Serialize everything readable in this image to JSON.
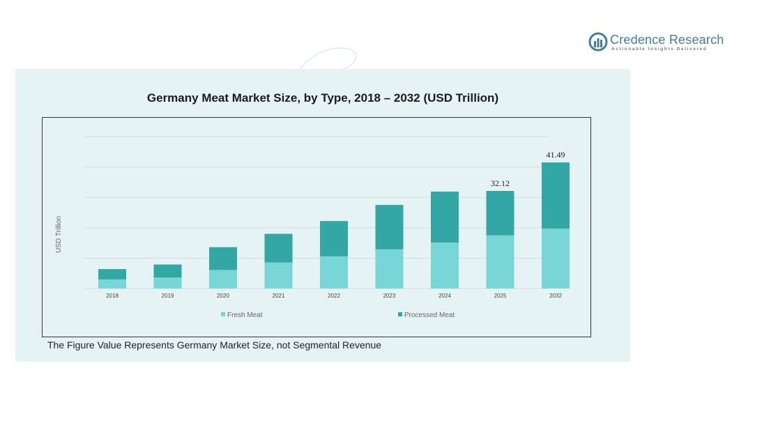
{
  "brand": {
    "name": "Credence Research",
    "tagline": "Actionable Insights Delivered"
  },
  "footnote": "The Figure Value Represents Germany Market Size, not Segmental Revenue",
  "colors": {
    "fresh": "#79d6d6",
    "processed": "#33a6a6",
    "panel": "#e5f3f4",
    "logo": "#3f7f9a"
  },
  "chart_data": {
    "type": "bar",
    "stacked": true,
    "title": "Germany Meat Market Size, by Type, 2018 – 2032 (USD Trillion)",
    "xlabel": "",
    "ylabel": "USD Trillion",
    "ylim": [
      0,
      50
    ],
    "grid": true,
    "legend_position": "bottom",
    "categories": [
      "2018",
      "2019",
      "2020",
      "2021",
      "2022",
      "2023",
      "2024",
      "2025",
      "2032"
    ],
    "series": [
      {
        "name": "Fresh Meat",
        "color": "#79d6d6",
        "values": [
          3.0,
          3.6,
          6.1,
          8.6,
          10.6,
          12.9,
          15.1,
          17.5,
          19.7
        ]
      },
      {
        "name": "Processed Meat",
        "color": "#33a6a6",
        "values": [
          3.4,
          4.3,
          7.5,
          9.4,
          11.6,
          14.6,
          16.8,
          14.62,
          21.79
        ]
      }
    ],
    "data_labels": [
      "",
      "",
      "",
      "",
      "",
      "",
      "",
      "32.12",
      "41.49"
    ]
  }
}
